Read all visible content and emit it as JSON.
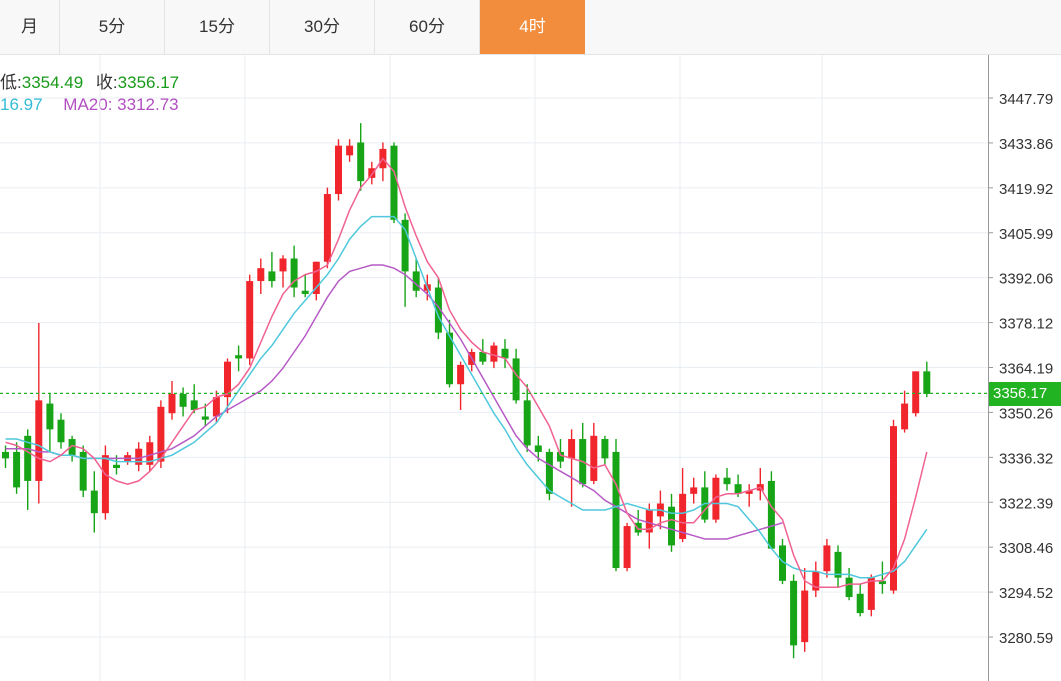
{
  "tabs": [
    {
      "label": "月",
      "active": false
    },
    {
      "label": "5分",
      "active": false
    },
    {
      "label": "15分",
      "active": false
    },
    {
      "label": "30分",
      "active": false
    },
    {
      "label": "60分",
      "active": false
    },
    {
      "label": "4时",
      "active": true
    }
  ],
  "info": {
    "low_label": "低:",
    "low_value": "3354.49",
    "close_label": "收:",
    "close_value": "3356.17",
    "ma10_value": "16.97",
    "ma20_label": "MA20:",
    "ma20_value": "3312.73"
  },
  "current_price_tag": "3356.17",
  "colors": {
    "up": "#f0262c",
    "down": "#17a517",
    "ma5": "#f06292",
    "ma10": "#4fc8dc",
    "ma20": "#b65ac5",
    "active_tab": "#f18d3d",
    "price_line": "#22b322",
    "grid": "#e9eef2"
  },
  "chart_data": {
    "type": "candlestick",
    "y_ticks": [
      "3447.79",
      "3433.86",
      "3419.92",
      "3405.99",
      "3392.06",
      "3378.12",
      "3364.19",
      "3350.26",
      "3336.32",
      "3322.39",
      "3308.46",
      "3294.52",
      "3280.59"
    ],
    "ylim": [
      3273.5,
      3460
    ],
    "current_price": 3356.17,
    "candles": [
      [
        3338,
        3340,
        3333,
        3336
      ],
      [
        3338,
        3341,
        3325,
        3327
      ],
      [
        3343,
        3345,
        3320,
        3329
      ],
      [
        3329,
        3378,
        3322,
        3354
      ],
      [
        3353,
        3356,
        3338,
        3345
      ],
      [
        3348,
        3350,
        3339,
        3341
      ],
      [
        3342,
        3343,
        3335,
        3337
      ],
      [
        3338,
        3340,
        3324,
        3326
      ],
      [
        3326,
        3332,
        3313,
        3319
      ],
      [
        3319,
        3340,
        3317,
        3337
      ],
      [
        3334,
        3337,
        3331,
        3333
      ],
      [
        3335,
        3338,
        3334,
        3337
      ],
      [
        3334,
        3341,
        3332,
        3339
      ],
      [
        3334,
        3343,
        3332,
        3341
      ],
      [
        3335,
        3354,
        3333,
        3352
      ],
      [
        3350,
        3360,
        3348,
        3356
      ],
      [
        3356,
        3358,
        3349,
        3352
      ],
      [
        3354,
        3359,
        3350,
        3351
      ],
      [
        3349,
        3353,
        3346,
        3348
      ],
      [
        3349,
        3357,
        3347,
        3355
      ],
      [
        3355,
        3367,
        3350,
        3366
      ],
      [
        3368,
        3371,
        3363,
        3367
      ],
      [
        3367,
        3393,
        3365,
        3391
      ],
      [
        3391,
        3398,
        3387,
        3395
      ],
      [
        3394,
        3400,
        3389,
        3391
      ],
      [
        3394,
        3399,
        3389,
        3398
      ],
      [
        3398,
        3402,
        3386,
        3389
      ],
      [
        3388,
        3393,
        3386,
        3387
      ],
      [
        3387,
        3397,
        3385,
        3397
      ],
      [
        3397,
        3420,
        3395,
        3418
      ],
      [
        3418,
        3435,
        3416,
        3433
      ],
      [
        3430,
        3435,
        3428,
        3433
      ],
      [
        3434,
        3440,
        3419,
        3422
      ],
      [
        3423,
        3428,
        3421,
        3426
      ],
      [
        3426,
        3434,
        3422,
        3432
      ],
      [
        3433,
        3434,
        3409,
        3410
      ],
      [
        3410,
        3412,
        3383,
        3394
      ],
      [
        3394,
        3398,
        3386,
        3388
      ],
      [
        3388,
        3393,
        3385,
        3390
      ],
      [
        3389,
        3392,
        3373,
        3375
      ],
      [
        3375,
        3379,
        3358,
        3359
      ],
      [
        3359,
        3366,
        3351,
        3365
      ],
      [
        3365,
        3370,
        3363,
        3369
      ],
      [
        3369,
        3373,
        3365,
        3366
      ],
      [
        3366,
        3372,
        3364,
        3371
      ],
      [
        3370,
        3373,
        3364,
        3367
      ],
      [
        3367,
        3370,
        3353,
        3354
      ],
      [
        3354,
        3359,
        3338,
        3340
      ],
      [
        3340,
        3343,
        3335,
        3338
      ],
      [
        3338,
        3339,
        3323,
        3325
      ],
      [
        3338,
        3342,
        3333,
        3335
      ],
      [
        3336,
        3345,
        3321,
        3342
      ],
      [
        3342,
        3347,
        3327,
        3328
      ],
      [
        3329,
        3347,
        3328,
        3343
      ],
      [
        3342,
        3343,
        3334,
        3336
      ],
      [
        3338,
        3342,
        3301,
        3302
      ],
      [
        3302,
        3316,
        3301,
        3315
      ],
      [
        3316,
        3320,
        3312,
        3313
      ],
      [
        3313,
        3322,
        3308,
        3320
      ],
      [
        3318,
        3326,
        3314,
        3322
      ],
      [
        3321,
        3325,
        3307,
        3309
      ],
      [
        3311,
        3333,
        3310,
        3325
      ],
      [
        3325,
        3330,
        3322,
        3327
      ],
      [
        3327,
        3332,
        3316,
        3317
      ],
      [
        3317,
        3331,
        3316,
        3330
      ],
      [
        3330,
        3333,
        3326,
        3328
      ],
      [
        3328,
        3331,
        3324,
        3325
      ],
      [
        3325,
        3328,
        3321,
        3326
      ],
      [
        3326,
        3333,
        3323,
        3328
      ],
      [
        3329,
        3332,
        3308,
        3308
      ],
      [
        3309,
        3311,
        3297,
        3298
      ],
      [
        3298,
        3300,
        3274,
        3278
      ],
      [
        3279,
        3302,
        3276,
        3295
      ],
      [
        3295,
        3304,
        3293,
        3301
      ],
      [
        3301,
        3311,
        3299,
        3309
      ],
      [
        3307,
        3309,
        3296,
        3299
      ],
      [
        3299,
        3302,
        3292,
        3293
      ],
      [
        3294,
        3297,
        3287,
        3288
      ],
      [
        3289,
        3300,
        3287,
        3299
      ],
      [
        3298,
        3304,
        3294,
        3297
      ],
      [
        3295,
        3348,
        3294,
        3346
      ],
      [
        3345,
        3357,
        3344,
        3353
      ],
      [
        3350,
        3363,
        3349,
        3363
      ],
      [
        3363,
        3366,
        3355,
        3356
      ]
    ],
    "ma5": [
      3341,
      3340,
      3338,
      3336,
      3335,
      3337,
      3340,
      3339,
      3336,
      3331,
      3329,
      3328,
      3329,
      3332,
      3336,
      3341,
      3346,
      3351,
      3352,
      3355,
      3356,
      3359,
      3364,
      3372,
      3380,
      3387,
      3391,
      3393,
      3394,
      3396,
      3404,
      3413,
      3420,
      3424,
      3429,
      3425,
      3414,
      3405,
      3397,
      3392,
      3382,
      3376,
      3372,
      3369,
      3368,
      3367,
      3362,
      3358,
      3352,
      3346,
      3337,
      3336,
      3335,
      3333,
      3334,
      3328,
      3319,
      3314,
      3314,
      3316,
      3317,
      3316,
      3316,
      3320,
      3324,
      3325,
      3325,
      3326,
      3327,
      3321,
      3317,
      3306,
      3298,
      3296,
      3296,
      3296,
      3297,
      3297,
      3298,
      3298,
      3302,
      3311,
      3324,
      3338
    ],
    "ma10": [
      3342,
      3342,
      3341,
      3340,
      3338,
      3337,
      3337,
      3336,
      3336,
      3336,
      3335,
      3335,
      3335,
      3335,
      3336,
      3337,
      3339,
      3341,
      3344,
      3347,
      3352,
      3357,
      3362,
      3367,
      3371,
      3376,
      3381,
      3385,
      3389,
      3393,
      3398,
      3404,
      3408,
      3411,
      3411,
      3411,
      3407,
      3398,
      3389,
      3380,
      3374,
      3368,
      3362,
      3356,
      3350,
      3345,
      3339,
      3334,
      3330,
      3326,
      3324,
      3322,
      3320,
      3320,
      3320,
      3321,
      3322,
      3321,
      3320,
      3320,
      3319,
      3319,
      3320,
      3322,
      3322,
      3322,
      3321,
      3317,
      3313,
      3308,
      3304,
      3302,
      3301,
      3301,
      3300,
      3300,
      3300,
      3299,
      3299,
      3300,
      3301,
      3304,
      3309,
      3314
    ],
    "ma20": [
      3339,
      3339,
      3339,
      3338,
      3338,
      3337,
      3337,
      3336,
      3336,
      3336,
      3336,
      3336,
      3336,
      3337,
      3338,
      3339,
      3341,
      3343,
      3346,
      3349,
      3351,
      3353,
      3355,
      3357,
      3360,
      3364,
      3369,
      3374,
      3380,
      3386,
      3391,
      3394,
      3395,
      3396,
      3396,
      3395,
      3393,
      3390,
      3387,
      3383,
      3378,
      3373,
      3367,
      3361,
      3355,
      3349,
      3343,
      3339,
      3336,
      3334,
      3332,
      3330,
      3328,
      3326,
      3323,
      3321,
      3319,
      3317,
      3316,
      3315,
      3314,
      3313,
      3312,
      3311,
      3311,
      3311,
      3312,
      3313,
      3314,
      3315,
      3316
    ]
  }
}
